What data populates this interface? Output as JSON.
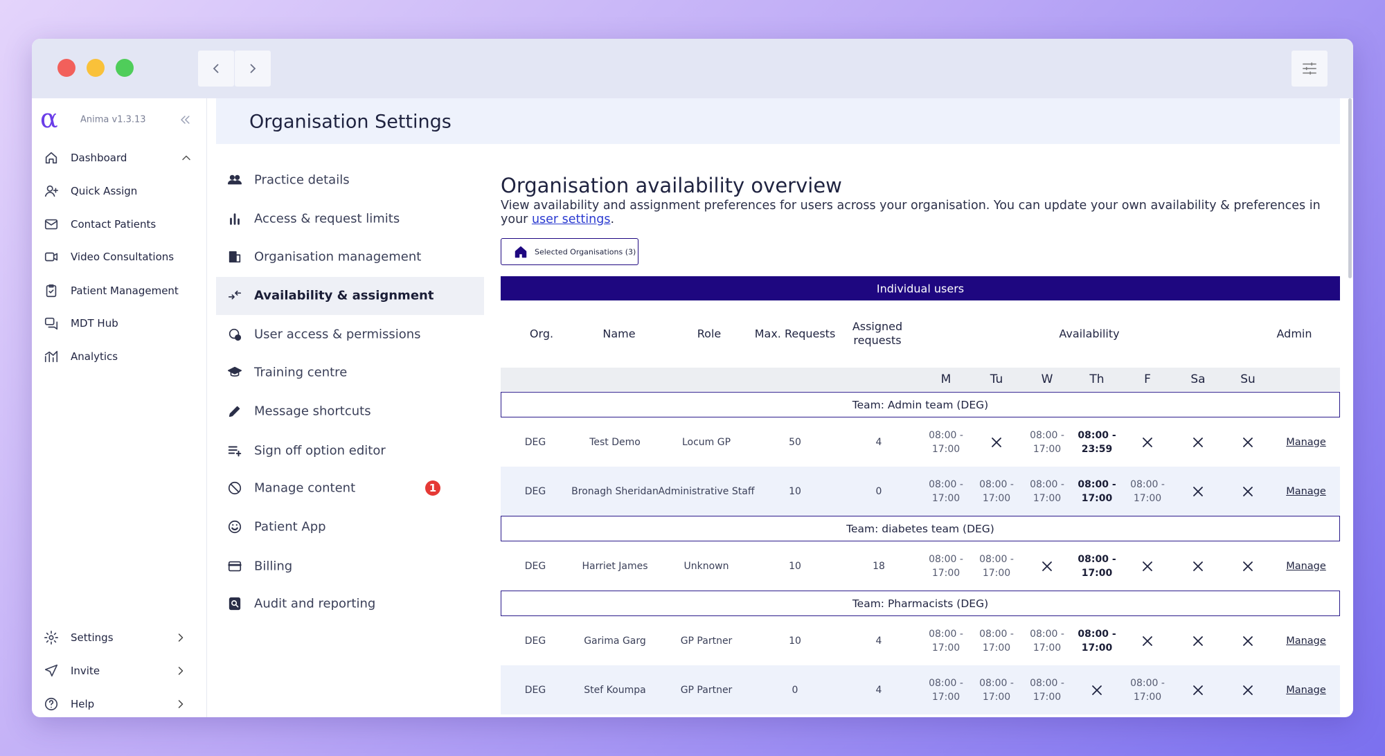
{
  "sidebar": {
    "version": "Anima v1.3.13",
    "items": [
      "Dashboard",
      "Quick Assign",
      "Contact Patients",
      "Video Consultations",
      "Patient Management",
      "MDT Hub",
      "Analytics"
    ],
    "bottom_items": [
      "Settings",
      "Invite",
      "Help"
    ]
  },
  "header": {
    "title": "Organisation Settings"
  },
  "settings_menu": {
    "items": [
      {
        "label": "Practice details"
      },
      {
        "label": "Access & request limits"
      },
      {
        "label": "Organisation management"
      },
      {
        "label": "Availability & assignment"
      },
      {
        "label": "User access & permissions"
      },
      {
        "label": "Training centre"
      },
      {
        "label": "Message shortcuts"
      },
      {
        "label": "Sign off option editor"
      },
      {
        "label": "Manage content",
        "badge": "1"
      },
      {
        "label": "Patient App"
      },
      {
        "label": "Billing"
      },
      {
        "label": "Audit and reporting"
      }
    ]
  },
  "content": {
    "title": "Organisation availability overview",
    "description": "View availability and assignment preferences for users across your organisation. You can update your own availability & preferences in your",
    "link": "user settings",
    "description_end": ".",
    "filter_button": "Selected Organisations (3)"
  },
  "table": {
    "banner": "Individual users",
    "columns": [
      "Org.",
      "Name",
      "Role",
      "Max. Requests",
      "Assigned requests",
      "Availability",
      "Admin"
    ],
    "days": [
      "M",
      "Tu",
      "W",
      "Th",
      "F",
      "Sa",
      "Su"
    ],
    "groups": [
      {
        "team": "Team: Admin team (DEG)",
        "rows": [
          {
            "org": "DEG",
            "name": "Test Demo",
            "role": "Locum GP",
            "max_requests": 50,
            "assigned": 4,
            "availability": [
              "08:00 - 17:00",
              null,
              "08:00 - 17:00",
              "08:00 - 23:59",
              null,
              null,
              null
            ],
            "admin": "Manage"
          },
          {
            "org": "DEG",
            "name": "Bronagh Sheridan",
            "role": "Administrative Staff",
            "max_requests": 10,
            "assigned": 0,
            "availability": [
              "08:00 - 17:00",
              "08:00 - 17:00",
              "08:00 - 17:00",
              "08:00 - 17:00",
              "08:00 - 17:00",
              null,
              null
            ],
            "admin": "Manage"
          }
        ]
      },
      {
        "team": "Team: diabetes team (DEG)",
        "rows": [
          {
            "org": "DEG",
            "name": "Harriet James",
            "role": "Unknown",
            "max_requests": 10,
            "assigned": 18,
            "availability": [
              "08:00 - 17:00",
              "08:00 - 17:00",
              null,
              "08:00 - 17:00",
              null,
              null,
              null
            ],
            "admin": "Manage"
          }
        ]
      },
      {
        "team": "Team: Pharmacists (DEG)",
        "rows": [
          {
            "org": "DEG",
            "name": "Garima Garg",
            "role": "GP Partner",
            "max_requests": 10,
            "assigned": 4,
            "availability": [
              "08:00 - 17:00",
              "08:00 - 17:00",
              "08:00 - 17:00",
              "08:00 - 17:00",
              null,
              null,
              null
            ],
            "admin": "Manage"
          },
          {
            "org": "DEG",
            "name": "Stef Koumpa",
            "role": "GP Partner",
            "max_requests": 0,
            "assigned": 4,
            "availability": [
              "08:00 - 17:00",
              "08:00 - 17:00",
              "08:00 - 17:00",
              null,
              "08:00 - 17:00",
              null,
              null
            ],
            "admin": "Manage"
          }
        ]
      }
    ]
  }
}
